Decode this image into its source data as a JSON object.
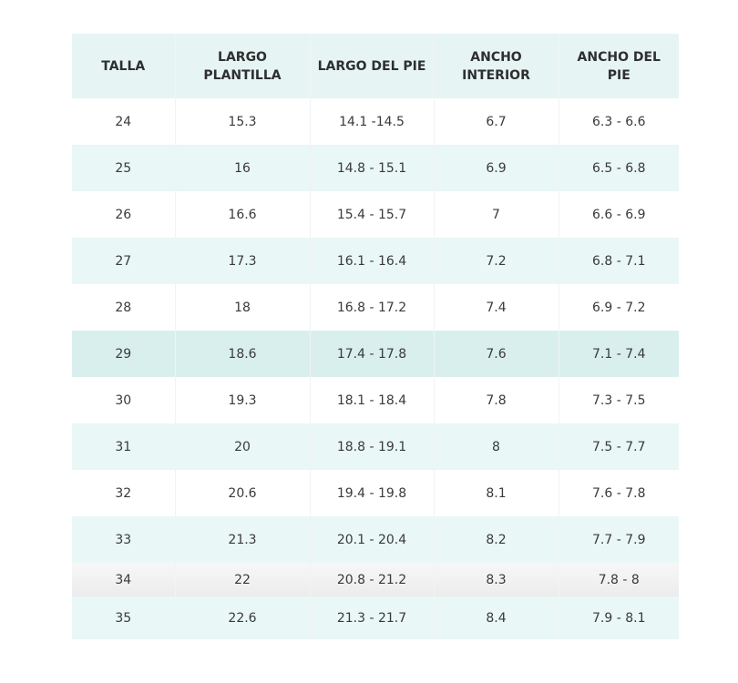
{
  "table": {
    "header": [
      "TALLA",
      "LARGO PLANTILLA",
      "LARGO DEL PIE",
      "ANCHO INTERIOR",
      "ANCHO DEL PIE"
    ],
    "rows": [
      [
        "24",
        "15.3",
        "14.1 -14.5",
        "6.7",
        "6.3 - 6.6"
      ],
      [
        "25",
        "16",
        "14.8 - 15.1",
        "6.9",
        "6.5 - 6.8"
      ],
      [
        "26",
        "16.6",
        "15.4 - 15.7",
        "7",
        "6.6 - 6.9"
      ],
      [
        "27",
        "17.3",
        "16.1 - 16.4",
        "7.2",
        "6.8 - 7.1"
      ],
      [
        "28",
        "18",
        "16.8 - 17.2",
        "7.4",
        "6.9 - 7.2"
      ],
      [
        "29",
        "18.6",
        "17.4 - 17.8",
        "7.6",
        "7.1 - 7.4"
      ],
      [
        "30",
        "19.3",
        "18.1 - 18.4",
        "7.8",
        "7.3 - 7.5"
      ],
      [
        "31",
        "20",
        "18.8 - 19.1",
        "8",
        "7.5 - 7.7"
      ],
      [
        "32",
        "20.6",
        "19.4 - 19.8",
        "8.1",
        "7.6 - 7.8"
      ],
      [
        "33",
        "21.3",
        "20.1 - 20.4",
        "8.2",
        "7.7 - 7.9"
      ],
      [
        "34",
        "22",
        "20.8 - 21.2",
        "8.3",
        "7.8 - 8"
      ],
      [
        "35",
        "22.6",
        "21.3 - 21.7",
        "8.4",
        "7.9 - 8.1"
      ]
    ]
  }
}
